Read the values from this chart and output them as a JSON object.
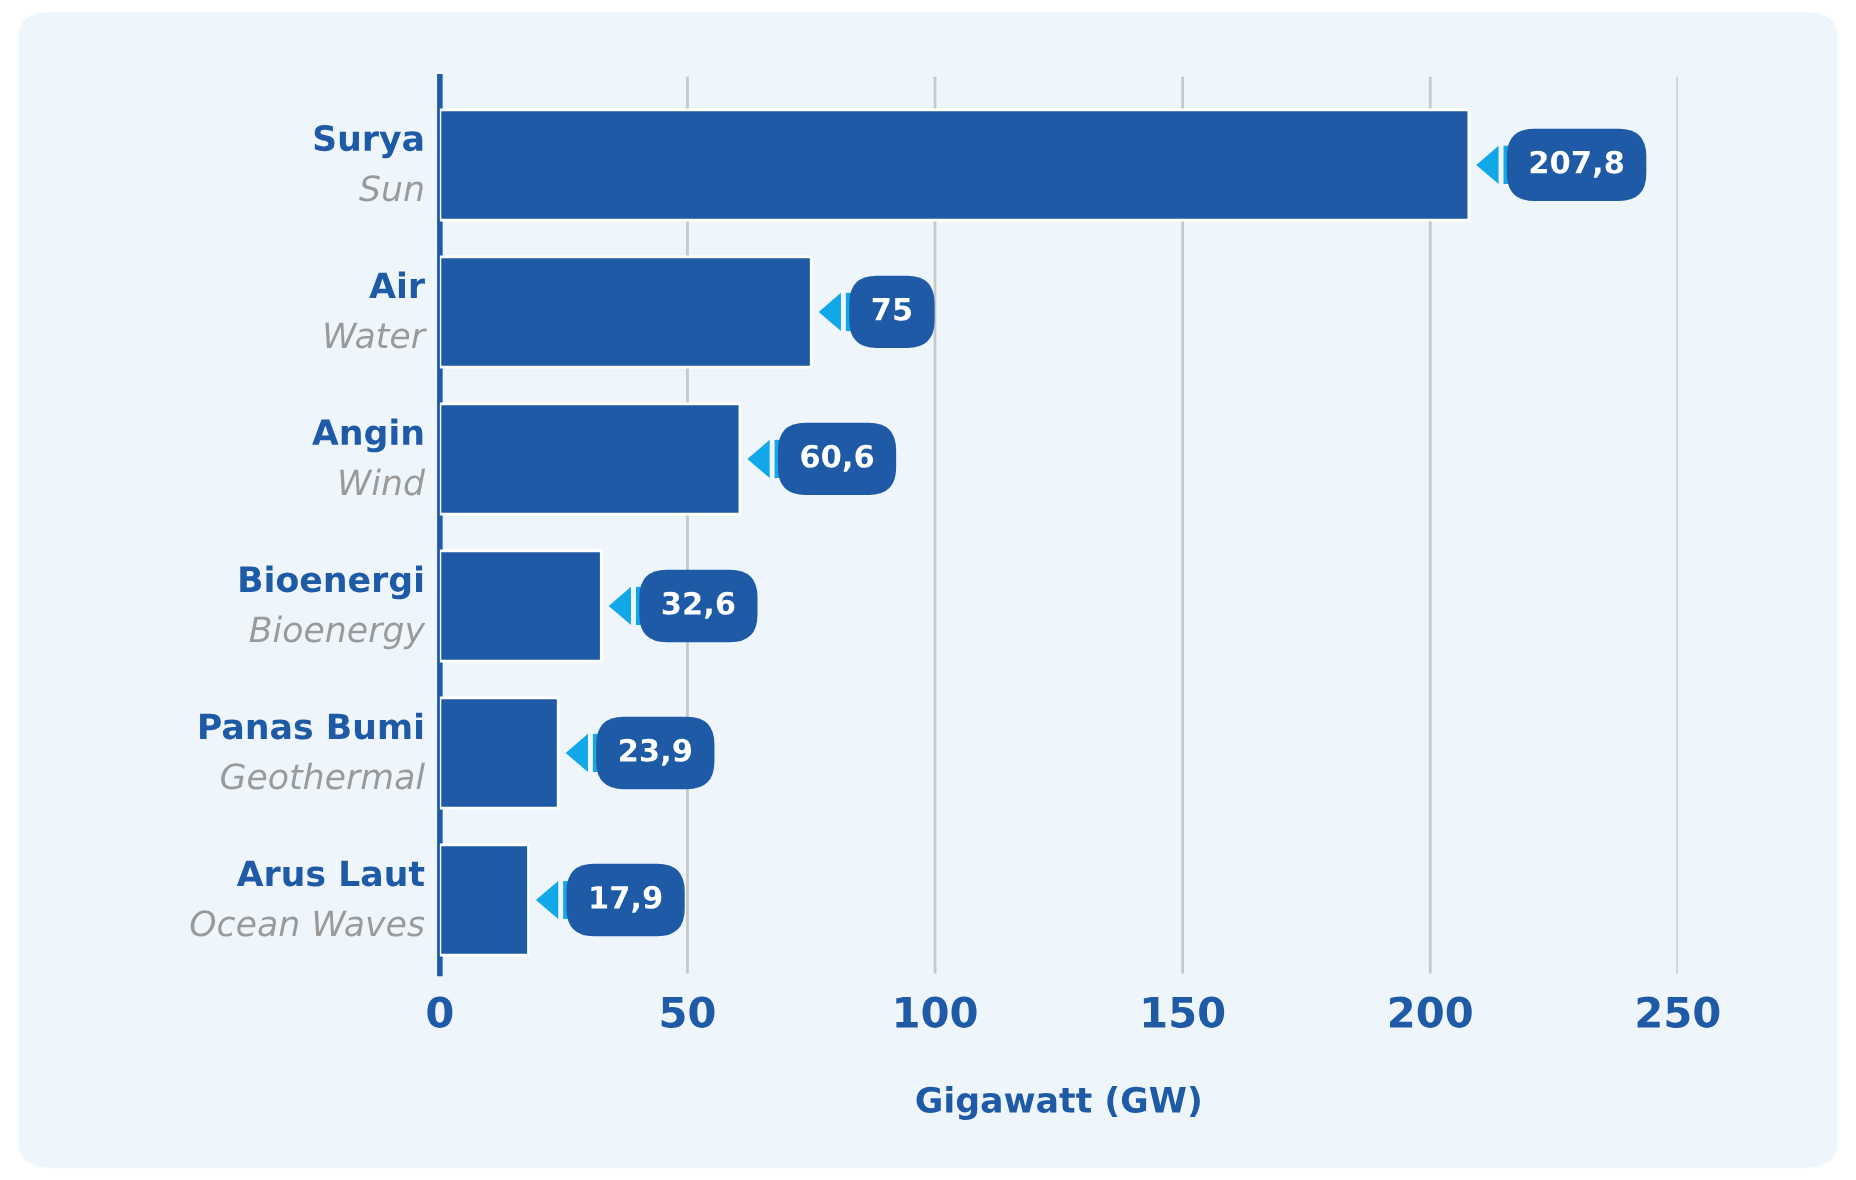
{
  "chart_data": {
    "type": "bar",
    "orientation": "horizontal",
    "categories": [
      "Surya\nSun",
      "Air\nWater",
      "Angin\nWind",
      "Bioenergi\nBioenergy",
      "Panas Bumi\nGeothermal",
      "Arus Laut\nOcean Waves"
    ],
    "values": [
      207.8,
      75,
      60.6,
      32.6,
      23.9,
      17.9
    ],
    "value_labels": [
      "207,8",
      "75",
      "60,6",
      "32,6",
      "23,9",
      "17,9"
    ],
    "color": "#1f5aa6",
    "xlabel": "Gigawatt (GW)",
    "xlim": [
      0,
      250
    ],
    "xticks": [
      0,
      50,
      100,
      150,
      200,
      250
    ],
    "grid": "x"
  }
}
